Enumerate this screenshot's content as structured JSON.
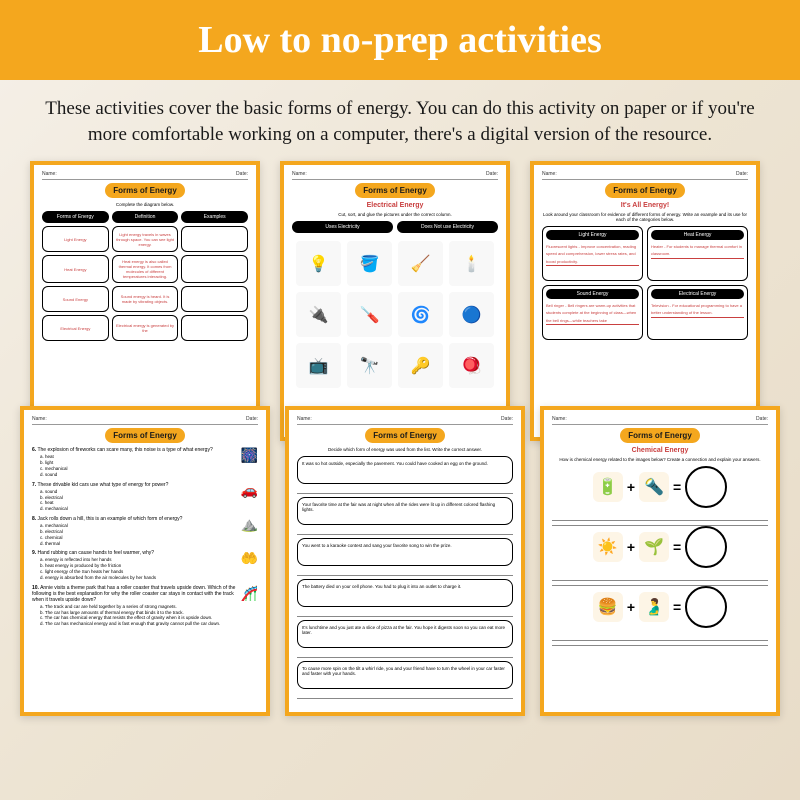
{
  "banner": {
    "title": "Low to no-prep activities",
    "bg_color": "#f4a71e",
    "text_color": "#ffffff"
  },
  "description": "These activities cover the basic forms of energy. You can do this activity on paper or if you're more comfortable working on a computer, there's a digital version of the resource.",
  "worksheet_title": "Forms of Energy",
  "name_label": "Name:",
  "date_label": "Date:",
  "ws1": {
    "instruction": "Complete the diagram below.",
    "cols": [
      "Forms of Energy",
      "Definition",
      "Examples"
    ],
    "rows": [
      {
        "type": "Light Energy",
        "def": "Light energy travels in waves through space. You can see light energy."
      },
      {
        "type": "Heat Energy",
        "def": "Heat energy is also called thermal energy. It comes from molecules of different temperatures interacting."
      },
      {
        "type": "Sound Energy",
        "def": "Sound energy is heard. It is made by vibrating objects."
      },
      {
        "type": "Electrical Energy",
        "def": "Electrical energy is generated by the"
      }
    ]
  },
  "ws2": {
    "subtitle": "Electrical Energy",
    "instruction": "Cut, sort, and glue the pictures under the correct column.",
    "cols": [
      "Uses Electricity",
      "Does Not use Electricity"
    ],
    "icons": [
      "💡",
      "🪣",
      "🧹",
      "🕯️",
      "🔌",
      "🪛",
      "🌀",
      "🔵",
      "📺",
      "🔭",
      "🔑",
      "🪀"
    ]
  },
  "ws3": {
    "subtitle": "It's All Energy!",
    "instruction": "Look around your classroom for evidence of different forms of energy. Write an example and its use for each of the categories below.",
    "boxes": [
      {
        "title": "Light Energy",
        "text": "Fluorescent lights - Improve concentration, reading speed and comprehension, lower stress rates, and boost productivity."
      },
      {
        "title": "Heat Energy",
        "text": "Heater - For students to manage thermal comfort in classroom."
      },
      {
        "title": "Sound Energy",
        "text": "Bell ringer - Bell ringers are warm-up activities that students complete at the beginning of class—when the bell rings—while teachers take"
      },
      {
        "title": "Electrical Energy",
        "text": "Television - For educational programming to have a better understanding of the lesson."
      }
    ]
  },
  "ws4": {
    "questions": [
      {
        "n": "6",
        "q": "The explosion of fireworks can scare many, this noise is a type of what energy?",
        "opts": [
          "a. heat",
          "b. light",
          "c. mechanical",
          "d. sound"
        ],
        "icon": "🎆"
      },
      {
        "n": "7",
        "q": "These drivable kid cars use what type of energy for power?",
        "opts": [
          "a. sound",
          "b. electrical",
          "c. heat",
          "d. mechanical"
        ],
        "icon": "🚗"
      },
      {
        "n": "8",
        "q": "Jack rolls down a hill, this is an example of which form of energy?",
        "opts": [
          "a. mechanical",
          "b. electrical",
          "c. chemical",
          "d. thermal"
        ],
        "icon": "⛰️"
      },
      {
        "n": "9",
        "q": "Hand rubbing can cause hands to feel warmer, why?",
        "opts": [
          "a. energy is reflected into her hands",
          "b. heat energy is produced by the friction",
          "c. light energy of the Sun heats her hands",
          "d. energy is absorbed from the air molecules by her hands"
        ],
        "icon": "🤲"
      },
      {
        "n": "10",
        "q": "Annie visits a theme park that has a roller coaster that travels upside down. Which of the following is the best explanation for why the roller coaster car stays in contact with the track when it travels upside down?",
        "opts": [
          "a. The track and car are held together by a series of strong magnets.",
          "b. The car has large amounts of thermal energy that binds it to the track.",
          "c. The car has chemical energy that resists the effect of gravity when it is upside down.",
          "d. The car has mechanical energy and is fast enough that gravity cannot pull the car down."
        ],
        "icon": "🎢"
      }
    ]
  },
  "ws5": {
    "instruction": "Decide which form of energy was used from the list. Write the correct answer.",
    "scenarios": [
      "It was so hot outside, especially the pavement. You could have cooked an egg on the ground.",
      "Your favorite time at the fair was at night when all the rides were lit up in different colored flashing lights.",
      "You went to a karaoke contest and sang your favorite song to win the prize.",
      "The battery died on your cell phone. You had to plug it into an outlet to charge it.",
      "It's lunchtime and you just ate a slice of pizza at the fair. You hope it digests soon so you can eat more later.",
      "To cause more spin on the tilt a whirl ride, you and your friend have to turn the wheel in your car faster and faster with your hands."
    ]
  },
  "ws6": {
    "subtitle": "Chemical Energy",
    "instruction": "How is chemical energy related to the images below? Create a connection and explain your answers.",
    "equations": [
      {
        "a": "🔋",
        "b": "🔦"
      },
      {
        "a": "☀️",
        "b": "🌱"
      },
      {
        "a": "🍔",
        "b": "🫃"
      }
    ]
  }
}
